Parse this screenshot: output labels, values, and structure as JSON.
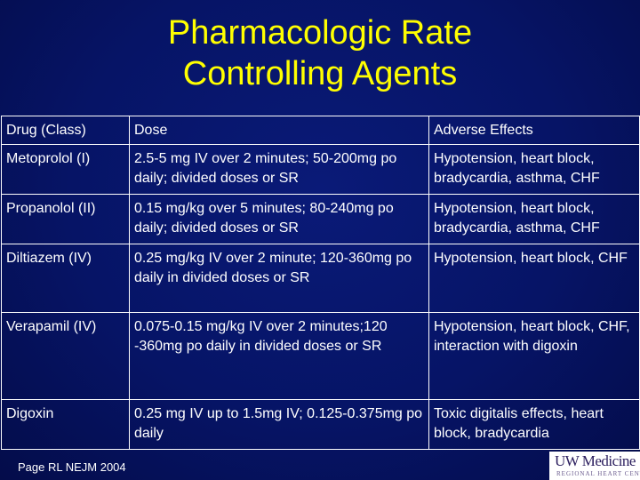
{
  "title": {
    "line1": "Pharmacologic Rate",
    "line2": "Controlling Agents"
  },
  "table": {
    "headers": [
      "Drug (Class)",
      "Dose",
      "Adverse Effects"
    ],
    "rows": [
      [
        "Metoprolol (I)",
        "2.5-5 mg IV over 2 minutes; 50-200mg po daily; divided doses or SR",
        "Hypotension, heart block, bradycardia, asthma, CHF"
      ],
      [
        "Propanolol (II)",
        "0.15 mg/kg over 5 minutes; 80-240mg po daily; divided doses or SR",
        "Hypotension, heart block, bradycardia, asthma, CHF"
      ],
      [
        "Diltiazem (IV)",
        "0.25 mg/kg IV over 2 minute; 120-360mg po daily in divided doses or SR",
        "Hypotension, heart block, CHF"
      ],
      [
        "Verapamil (IV)",
        "0.075-0.15 mg/kg IV over 2 minutes;120 -360mg po daily in divided doses or SR",
        "Hypotension, heart block, CHF, interaction with digoxin"
      ],
      [
        "Digoxin",
        "0.25 mg IV up to 1.5mg IV; 0.125-0.375mg po daily",
        "Toxic digitalis effects, heart block, bradycardia"
      ]
    ]
  },
  "citation": "Page RL NEJM 2004",
  "logo": {
    "main": "UW Medicine",
    "sub": "REGIONAL HEART CENTER"
  },
  "colors": {
    "background": "#061466",
    "title": "#ffff00",
    "text": "#ffffff"
  }
}
